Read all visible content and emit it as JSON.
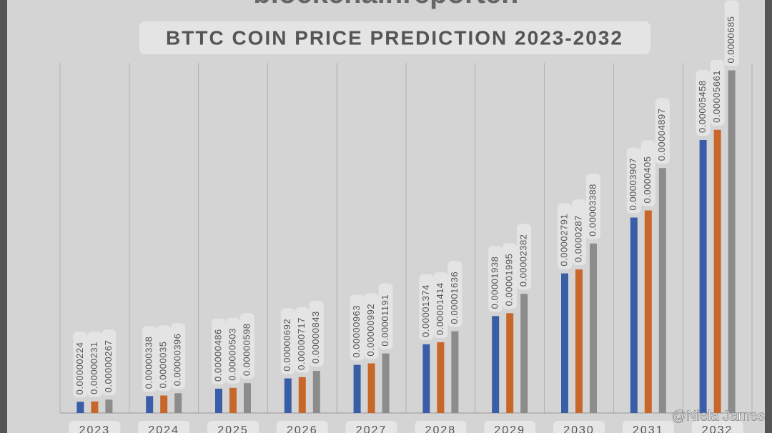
{
  "logo": "blockchainreporter.",
  "watermark": "@Niela James",
  "chart_data": {
    "type": "bar",
    "title": "BTTC COIN PRICE PREDICTION  2023-2032",
    "categories": [
      "2023",
      "2024",
      "2025",
      "2026",
      "2027",
      "2028",
      "2029",
      "2030",
      "2031",
      "2032"
    ],
    "series": [
      {
        "color": "#3a5da8",
        "values": [
          2.24e-06,
          3.38e-06,
          4.86e-06,
          6.92e-06,
          9.63e-06,
          1.374e-05,
          1.938e-05,
          2.791e-05,
          3.907e-05,
          5.458e-05
        ]
      },
      {
        "color": "#c8672a",
        "values": [
          2.31e-06,
          3.5e-06,
          5.03e-06,
          7.17e-06,
          9.92e-06,
          1.414e-05,
          1.995e-05,
          2.87e-05,
          4.05e-05,
          5.661e-05
        ]
      },
      {
        "color": "#8c8c8c",
        "values": [
          2.67e-06,
          3.96e-06,
          5.98e-06,
          8.43e-06,
          1.191e-05,
          1.636e-05,
          2.382e-05,
          3.388e-05,
          4.897e-05,
          6.85e-05
        ]
      }
    ],
    "ylim": [
      0,
      7e-05
    ]
  }
}
